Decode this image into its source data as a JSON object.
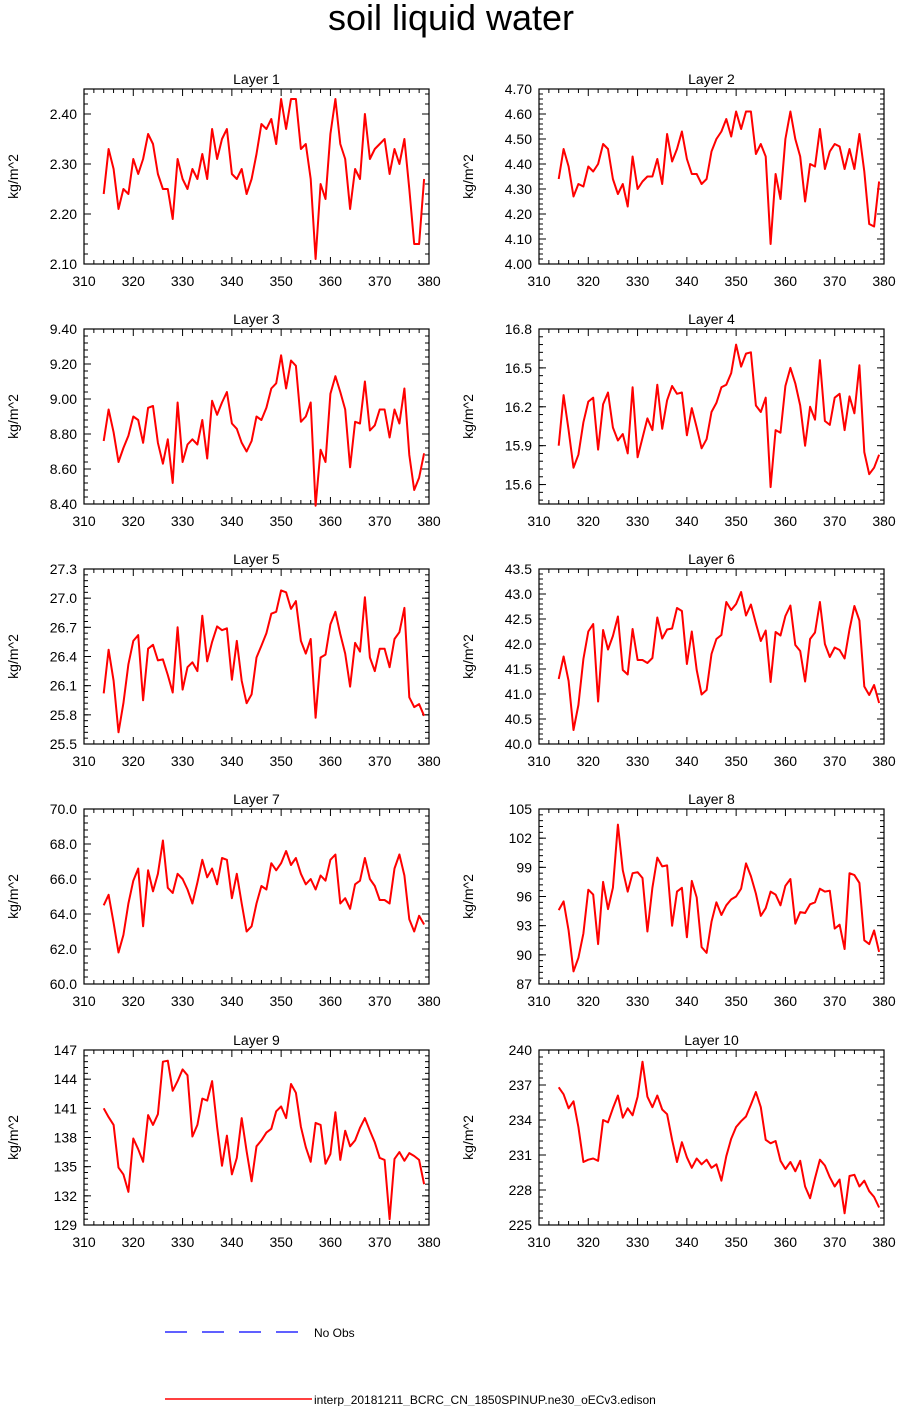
{
  "title": "soil liquid water",
  "chart_data": [
    {
      "type": "line",
      "title": "Layer 1",
      "ylabel": "kg/m^2",
      "xlim": [
        310,
        380
      ],
      "ylim": [
        2.1,
        2.45
      ],
      "xticks": [
        310,
        320,
        330,
        340,
        350,
        360,
        370,
        380
      ],
      "yticks": [
        "2.10",
        "2.20",
        "2.30",
        "2.40"
      ],
      "series": [
        {
          "name": "interp_20181211_BCRC_CN_1850SPINUP.ne30_oECv3.edison",
          "x_start": 314,
          "values": [
            2.24,
            2.33,
            2.29,
            2.21,
            2.25,
            2.24,
            2.31,
            2.28,
            2.31,
            2.36,
            2.34,
            2.28,
            2.25,
            2.25,
            2.19,
            2.31,
            2.27,
            2.25,
            2.29,
            2.27,
            2.32,
            2.27,
            2.37,
            2.31,
            2.35,
            2.37,
            2.28,
            2.27,
            2.29,
            2.24,
            2.27,
            2.32,
            2.38,
            2.37,
            2.39,
            2.34,
            2.43,
            2.37,
            2.43,
            2.43,
            2.33,
            2.34,
            2.27,
            2.11,
            2.26,
            2.23,
            2.36,
            2.43,
            2.34,
            2.31,
            2.21,
            2.29,
            2.27,
            2.4,
            2.31,
            2.33,
            2.34,
            2.35,
            2.28,
            2.33,
            2.3,
            2.35,
            2.25,
            2.14,
            2.14,
            2.27
          ]
        }
      ]
    },
    {
      "type": "line",
      "title": "Layer 2",
      "ylabel": "kg/m^2",
      "xlim": [
        310,
        380
      ],
      "ylim": [
        4.0,
        4.7
      ],
      "xticks": [
        310,
        320,
        330,
        340,
        350,
        360,
        370,
        380
      ],
      "yticks": [
        "4.00",
        "4.10",
        "4.20",
        "4.30",
        "4.40",
        "4.50",
        "4.60",
        "4.70"
      ],
      "series": [
        {
          "name": "interp_20181211_BCRC_CN_1850SPINUP.ne30_oECv3.edison",
          "x_start": 314,
          "values": [
            4.34,
            4.46,
            4.39,
            4.27,
            4.32,
            4.31,
            4.39,
            4.37,
            4.4,
            4.48,
            4.46,
            4.34,
            4.28,
            4.32,
            4.23,
            4.43,
            4.3,
            4.33,
            4.35,
            4.35,
            4.42,
            4.32,
            4.52,
            4.41,
            4.46,
            4.53,
            4.42,
            4.36,
            4.36,
            4.32,
            4.34,
            4.45,
            4.5,
            4.53,
            4.58,
            4.51,
            4.61,
            4.54,
            4.61,
            4.61,
            4.44,
            4.48,
            4.43,
            4.08,
            4.36,
            4.26,
            4.5,
            4.61,
            4.5,
            4.43,
            4.25,
            4.4,
            4.39,
            4.54,
            4.38,
            4.45,
            4.48,
            4.47,
            4.38,
            4.46,
            4.38,
            4.52,
            4.37,
            4.16,
            4.15,
            4.33
          ]
        }
      ]
    },
    {
      "type": "line",
      "title": "Layer 3",
      "ylabel": "kg/m^2",
      "xlim": [
        310,
        380
      ],
      "ylim": [
        8.4,
        9.4
      ],
      "xticks": [
        310,
        320,
        330,
        340,
        350,
        360,
        370,
        380
      ],
      "yticks": [
        "8.40",
        "8.60",
        "8.80",
        "9.00",
        "9.20",
        "9.40"
      ],
      "series": [
        {
          "name": "interp_20181211_BCRC_CN_1850SPINUP.ne30_oECv3.edison",
          "x_start": 314,
          "values": [
            8.76,
            8.94,
            8.81,
            8.64,
            8.72,
            8.79,
            8.9,
            8.88,
            8.75,
            8.95,
            8.96,
            8.75,
            8.63,
            8.77,
            8.52,
            8.98,
            8.64,
            8.74,
            8.77,
            8.74,
            8.88,
            8.66,
            8.99,
            8.91,
            8.98,
            9.04,
            8.86,
            8.83,
            8.75,
            8.7,
            8.76,
            8.9,
            8.88,
            8.95,
            9.06,
            9.09,
            9.25,
            9.06,
            9.22,
            9.19,
            8.87,
            8.9,
            8.98,
            8.39,
            8.71,
            8.64,
            9.03,
            9.13,
            9.04,
            8.94,
            8.61,
            8.87,
            8.86,
            9.1,
            8.82,
            8.85,
            8.94,
            8.94,
            8.78,
            8.94,
            8.86,
            9.06,
            8.68,
            8.48,
            8.55,
            8.69
          ]
        }
      ]
    },
    {
      "type": "line",
      "title": "Layer 4",
      "ylabel": "kg/m^2",
      "xlim": [
        310,
        380
      ],
      "ylim": [
        15.45,
        16.8
      ],
      "xticks": [
        310,
        320,
        330,
        340,
        350,
        360,
        370,
        380
      ],
      "yticks": [
        "15.6",
        "15.9",
        "16.2",
        "16.5",
        "16.8"
      ],
      "series": [
        {
          "name": "interp_20181211_BCRC_CN_1850SPINUP.ne30_oECv3.edison",
          "x_start": 314,
          "values": [
            15.9,
            16.29,
            16.02,
            15.73,
            15.83,
            16.08,
            16.24,
            16.27,
            15.87,
            16.22,
            16.31,
            16.04,
            15.94,
            15.99,
            15.84,
            16.35,
            15.81,
            15.96,
            16.11,
            16.02,
            16.37,
            16.03,
            16.25,
            16.36,
            16.3,
            16.31,
            15.98,
            16.19,
            16.04,
            15.88,
            15.95,
            16.16,
            16.23,
            16.35,
            16.37,
            16.46,
            16.68,
            16.51,
            16.61,
            16.62,
            16.21,
            16.16,
            16.27,
            15.58,
            16.02,
            16.0,
            16.36,
            16.5,
            16.38,
            16.21,
            15.9,
            16.2,
            16.1,
            16.56,
            16.09,
            16.06,
            16.27,
            16.3,
            16.02,
            16.28,
            16.15,
            16.52,
            15.85,
            15.68,
            15.73,
            15.83
          ]
        }
      ]
    },
    {
      "type": "line",
      "title": "Layer 5",
      "ylabel": "kg/m^2",
      "xlim": [
        310,
        380
      ],
      "ylim": [
        25.5,
        27.3
      ],
      "xticks": [
        310,
        320,
        330,
        340,
        350,
        360,
        370,
        380
      ],
      "yticks": [
        "25.5",
        "25.8",
        "26.1",
        "26.4",
        "26.7",
        "27.0",
        "27.3"
      ],
      "series": [
        {
          "name": "interp_20181211_BCRC_CN_1850SPINUP.ne30_oECv3.edison",
          "x_start": 314,
          "values": [
            26.02,
            26.47,
            26.15,
            25.62,
            25.92,
            26.32,
            26.56,
            26.62,
            25.95,
            26.48,
            26.52,
            26.36,
            26.37,
            26.21,
            26.03,
            26.7,
            26.06,
            26.29,
            26.34,
            26.25,
            26.82,
            26.35,
            26.55,
            26.71,
            26.67,
            26.69,
            26.16,
            26.56,
            26.15,
            25.92,
            26.01,
            26.39,
            26.51,
            26.64,
            26.84,
            26.86,
            27.08,
            27.06,
            26.89,
            26.97,
            26.56,
            26.43,
            26.58,
            25.77,
            26.39,
            26.42,
            26.73,
            26.86,
            26.63,
            26.43,
            26.09,
            26.54,
            26.45,
            27.01,
            26.39,
            26.25,
            26.48,
            26.48,
            26.29,
            26.58,
            26.65,
            26.9,
            25.98,
            25.88,
            25.91,
            25.79
          ]
        }
      ]
    },
    {
      "type": "line",
      "title": "Layer 6",
      "ylabel": "kg/m^2",
      "xlim": [
        310,
        380
      ],
      "ylim": [
        40.0,
        43.5
      ],
      "xticks": [
        310,
        320,
        330,
        340,
        350,
        360,
        370,
        380
      ],
      "yticks": [
        "40.0",
        "40.5",
        "41.0",
        "41.5",
        "42.0",
        "42.5",
        "43.0",
        "43.5"
      ],
      "series": [
        {
          "name": "interp_20181211_BCRC_CN_1850SPINUP.ne30_oECv3.edison",
          "x_start": 314,
          "values": [
            41.3,
            41.75,
            41.26,
            40.28,
            40.78,
            41.7,
            42.25,
            42.4,
            40.85,
            42.28,
            41.89,
            42.16,
            42.55,
            41.48,
            41.39,
            42.3,
            41.68,
            41.68,
            41.62,
            41.72,
            42.53,
            42.11,
            42.29,
            42.31,
            42.72,
            42.66,
            41.6,
            42.25,
            41.48,
            40.99,
            41.08,
            41.8,
            42.1,
            42.18,
            42.84,
            42.68,
            42.8,
            43.04,
            42.57,
            42.79,
            42.41,
            42.06,
            42.27,
            41.24,
            42.24,
            42.17,
            42.56,
            42.77,
            41.98,
            41.86,
            41.25,
            42.1,
            42.23,
            42.84,
            42.0,
            41.74,
            41.93,
            41.88,
            41.71,
            42.29,
            42.76,
            42.47,
            41.15,
            40.98,
            41.18,
            40.82
          ]
        }
      ]
    },
    {
      "type": "line",
      "title": "Layer 7",
      "ylabel": "kg/m^2",
      "xlim": [
        310,
        380
      ],
      "ylim": [
        60.0,
        70.0
      ],
      "xticks": [
        310,
        320,
        330,
        340,
        350,
        360,
        370,
        380
      ],
      "yticks": [
        "60.0",
        "62.0",
        "64.0",
        "66.0",
        "68.0",
        "70.0"
      ],
      "series": [
        {
          "name": "interp_20181211_BCRC_CN_1850SPINUP.ne30_oECv3.edison",
          "x_start": 314,
          "values": [
            64.5,
            65.1,
            63.5,
            61.8,
            62.8,
            64.6,
            65.9,
            66.6,
            63.3,
            66.5,
            65.3,
            66.3,
            68.2,
            65.5,
            65.2,
            66.3,
            66.0,
            65.4,
            64.6,
            65.8,
            67.1,
            66.1,
            66.6,
            65.7,
            67.2,
            67.1,
            64.9,
            66.3,
            64.6,
            63.0,
            63.3,
            64.6,
            65.6,
            65.4,
            66.9,
            66.5,
            66.9,
            67.6,
            66.8,
            67.2,
            66.3,
            65.7,
            66.0,
            65.4,
            66.2,
            65.9,
            67.1,
            67.4,
            64.6,
            64.9,
            64.3,
            65.7,
            65.9,
            67.2,
            66.0,
            65.6,
            64.8,
            64.8,
            64.6,
            66.6,
            67.4,
            66.2,
            63.7,
            63.0,
            63.9,
            63.4
          ]
        }
      ]
    },
    {
      "type": "line",
      "title": "Layer 8",
      "ylabel": "kg/m^2",
      "xlim": [
        310,
        380
      ],
      "ylim": [
        87,
        105
      ],
      "xticks": [
        310,
        320,
        330,
        340,
        350,
        360,
        370,
        380
      ],
      "yticks": [
        "87",
        "90",
        "93",
        "96",
        "99",
        "102",
        "105"
      ],
      "series": [
        {
          "name": "interp_20181211_BCRC_CN_1850SPINUP.ne30_oECv3.edison",
          "x_start": 314,
          "values": [
            94.6,
            95.5,
            92.5,
            88.3,
            89.7,
            92.2,
            96.7,
            96.2,
            91.1,
            97.5,
            94.7,
            96.9,
            103.4,
            98.7,
            96.5,
            98.4,
            98.5,
            97.9,
            92.4,
            96.9,
            100.0,
            99.1,
            99.2,
            93.0,
            96.5,
            96.9,
            91.8,
            97.6,
            95.9,
            90.8,
            90.2,
            93.4,
            95.4,
            94.1,
            95.1,
            95.7,
            96.0,
            96.8,
            99.4,
            98.1,
            96.3,
            94.0,
            94.8,
            96.5,
            96.2,
            95.1,
            97.1,
            97.8,
            93.2,
            94.4,
            94.3,
            95.2,
            95.4,
            96.8,
            96.5,
            96.6,
            92.7,
            93.1,
            90.6,
            98.4,
            98.2,
            97.4,
            91.5,
            91.1,
            92.5,
            90.3
          ]
        }
      ]
    },
    {
      "type": "line",
      "title": "Layer 9",
      "ylabel": "kg/m^2",
      "xlim": [
        310,
        380
      ],
      "ylim": [
        129,
        147
      ],
      "xticks": [
        310,
        320,
        330,
        340,
        350,
        360,
        370,
        380
      ],
      "yticks": [
        "129",
        "132",
        "135",
        "138",
        "141",
        "144",
        "147"
      ],
      "series": [
        {
          "name": "interp_20181211_BCRC_CN_1850SPINUP.ne30_oECv3.edison",
          "x_start": 314,
          "values": [
            141.0,
            140.1,
            139.3,
            134.9,
            134.2,
            132.4,
            137.9,
            136.8,
            135.5,
            140.3,
            139.3,
            140.4,
            145.8,
            145.9,
            142.8,
            143.8,
            145.0,
            144.4,
            138.1,
            139.3,
            142.0,
            141.8,
            143.8,
            139.1,
            135.1,
            138.2,
            134.2,
            135.9,
            140.0,
            136.6,
            133.5,
            137.1,
            137.7,
            138.5,
            138.9,
            140.7,
            141.2,
            140.0,
            143.5,
            142.6,
            139.1,
            137.0,
            135.5,
            139.5,
            139.3,
            135.3,
            136.3,
            140.6,
            135.7,
            138.7,
            137.1,
            137.7,
            139.0,
            140.0,
            138.7,
            137.5,
            135.9,
            135.7,
            129.6,
            135.8,
            136.5,
            135.6,
            136.4,
            136.1,
            135.7,
            133.2
          ]
        }
      ]
    },
    {
      "type": "line",
      "title": "Layer 10",
      "ylabel": "kg/m^2",
      "xlim": [
        310,
        380
      ],
      "ylim": [
        225,
        240
      ],
      "xticks": [
        310,
        320,
        330,
        340,
        350,
        360,
        370,
        380
      ],
      "yticks": [
        "225",
        "228",
        "231",
        "234",
        "237",
        "240"
      ],
      "series": [
        {
          "name": "interp_20181211_BCRC_CN_1850SPINUP.ne30_oECv3.edison",
          "x_start": 314,
          "values": [
            236.8,
            236.2,
            235.0,
            235.6,
            233.4,
            230.4,
            230.6,
            230.7,
            230.5,
            234.0,
            233.8,
            235.0,
            236.1,
            234.2,
            235.0,
            234.4,
            236.0,
            239.0,
            236.0,
            235.1,
            236.1,
            234.9,
            234.5,
            232.3,
            230.4,
            232.1,
            230.8,
            229.9,
            230.7,
            230.2,
            230.6,
            229.9,
            230.2,
            228.8,
            230.9,
            232.4,
            233.4,
            233.9,
            234.3,
            235.3,
            236.4,
            235.1,
            232.3,
            232.0,
            232.2,
            230.5,
            229.8,
            230.4,
            229.6,
            230.5,
            228.3,
            227.3,
            229.0,
            230.6,
            230.1,
            229.1,
            228.3,
            228.9,
            226.0,
            229.2,
            229.3,
            228.3,
            228.8,
            227.9,
            227.4,
            226.5
          ]
        }
      ]
    }
  ],
  "legend": {
    "entries": [
      {
        "label": "No Obs",
        "color": "#0000ff",
        "style": "dashed"
      },
      {
        "label": "interp_20181211_BCRC_CN_1850SPINUP.ne30_oECv3.edison",
        "color": "#ff0000",
        "style": "solid"
      }
    ]
  },
  "colors": {
    "model_line": "#ff0000",
    "obs_line": "#0000ff"
  }
}
